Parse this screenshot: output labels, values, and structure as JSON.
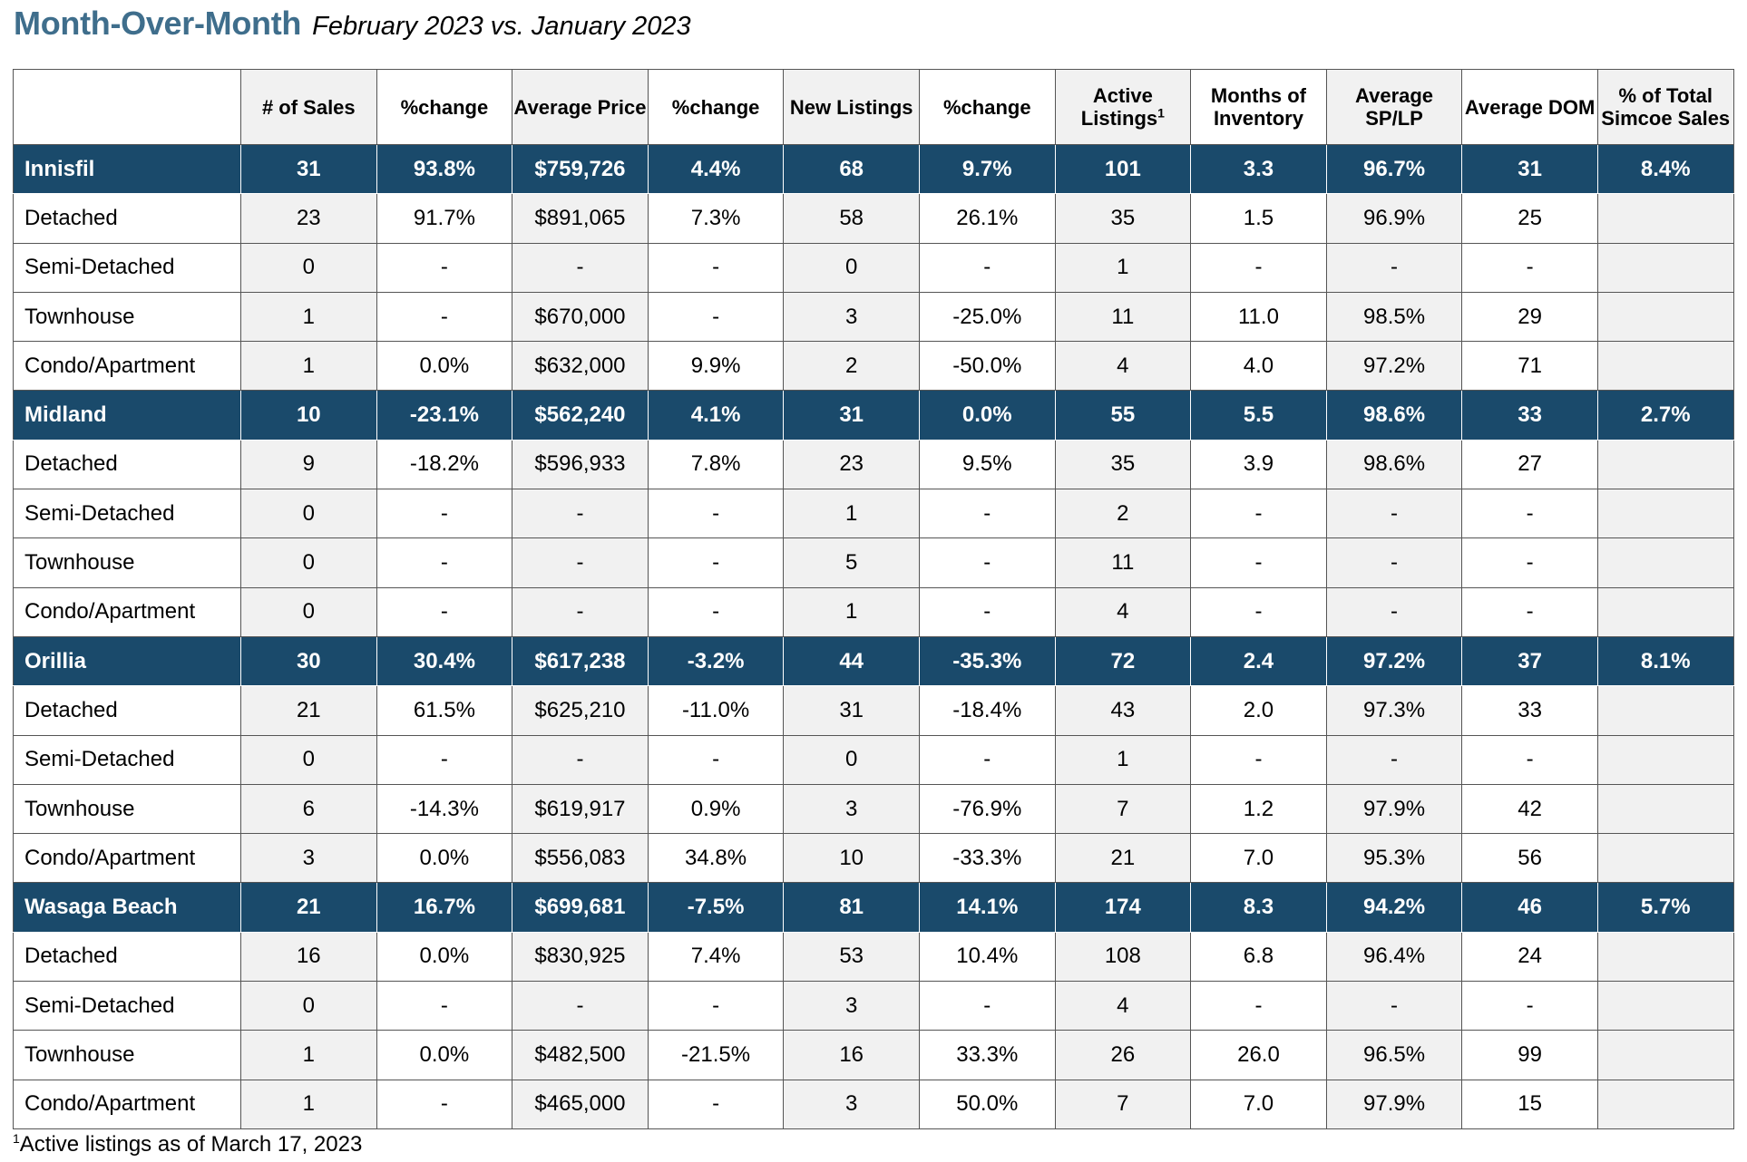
{
  "title": {
    "main": "Month-Over-Month",
    "sub": "February 2023 vs. January 2023"
  },
  "columns": [
    {
      "text": ""
    },
    {
      "text": "# of Sales",
      "shade": true
    },
    {
      "text": "%change"
    },
    {
      "text": "Average Price",
      "shade": true
    },
    {
      "text": "%change"
    },
    {
      "text": "New Listings",
      "shade": true
    },
    {
      "text": "%change"
    },
    {
      "text": "Active Listings",
      "sup": "1",
      "shade": true
    },
    {
      "text": "Months of Inventory"
    },
    {
      "text": "Average SP/LP",
      "shade": true
    },
    {
      "text": "Average DOM"
    },
    {
      "text": "% of Total Simcoe Sales",
      "shade": true
    }
  ],
  "rows": [
    {
      "type": "region",
      "cells": [
        "Innisfil",
        "31",
        "93.8%",
        "$759,726",
        "4.4%",
        "68",
        "9.7%",
        "101",
        "3.3",
        "96.7%",
        "31",
        "8.4%"
      ]
    },
    {
      "type": "sub",
      "cells": [
        "Detached",
        "23",
        "91.7%",
        "$891,065",
        "7.3%",
        "58",
        "26.1%",
        "35",
        "1.5",
        "96.9%",
        "25",
        ""
      ]
    },
    {
      "type": "sub",
      "cells": [
        "Semi-Detached",
        "0",
        "-",
        "-",
        "-",
        "0",
        "-",
        "1",
        "-",
        "-",
        "-",
        ""
      ]
    },
    {
      "type": "sub",
      "cells": [
        "Townhouse",
        "1",
        "-",
        "$670,000",
        "-",
        "3",
        "-25.0%",
        "11",
        "11.0",
        "98.5%",
        "29",
        ""
      ]
    },
    {
      "type": "sub",
      "cells": [
        "Condo/Apartment",
        "1",
        "0.0%",
        "$632,000",
        "9.9%",
        "2",
        "-50.0%",
        "4",
        "4.0",
        "97.2%",
        "71",
        ""
      ]
    },
    {
      "type": "region",
      "cells": [
        "Midland",
        "10",
        "-23.1%",
        "$562,240",
        "4.1%",
        "31",
        "0.0%",
        "55",
        "5.5",
        "98.6%",
        "33",
        "2.7%"
      ]
    },
    {
      "type": "sub",
      "cells": [
        "Detached",
        "9",
        "-18.2%",
        "$596,933",
        "7.8%",
        "23",
        "9.5%",
        "35",
        "3.9",
        "98.6%",
        "27",
        ""
      ]
    },
    {
      "type": "sub",
      "cells": [
        "Semi-Detached",
        "0",
        "-",
        "-",
        "-",
        "1",
        "-",
        "2",
        "-",
        "-",
        "-",
        ""
      ]
    },
    {
      "type": "sub",
      "cells": [
        "Townhouse",
        "0",
        "-",
        "-",
        "-",
        "5",
        "-",
        "11",
        "-",
        "-",
        "-",
        ""
      ]
    },
    {
      "type": "sub",
      "cells": [
        "Condo/Apartment",
        "0",
        "-",
        "-",
        "-",
        "1",
        "-",
        "4",
        "-",
        "-",
        "-",
        ""
      ]
    },
    {
      "type": "region",
      "cells": [
        "Orillia",
        "30",
        "30.4%",
        "$617,238",
        "-3.2%",
        "44",
        "-35.3%",
        "72",
        "2.4",
        "97.2%",
        "37",
        "8.1%"
      ]
    },
    {
      "type": "sub",
      "cells": [
        "Detached",
        "21",
        "61.5%",
        "$625,210",
        "-11.0%",
        "31",
        "-18.4%",
        "43",
        "2.0",
        "97.3%",
        "33",
        ""
      ]
    },
    {
      "type": "sub",
      "cells": [
        "Semi-Detached",
        "0",
        "-",
        "-",
        "-",
        "0",
        "-",
        "1",
        "-",
        "-",
        "-",
        ""
      ]
    },
    {
      "type": "sub",
      "cells": [
        "Townhouse",
        "6",
        "-14.3%",
        "$619,917",
        "0.9%",
        "3",
        "-76.9%",
        "7",
        "1.2",
        "97.9%",
        "42",
        ""
      ]
    },
    {
      "type": "sub",
      "cells": [
        "Condo/Apartment",
        "3",
        "0.0%",
        "$556,083",
        "34.8%",
        "10",
        "-33.3%",
        "21",
        "7.0",
        "95.3%",
        "56",
        ""
      ]
    },
    {
      "type": "region",
      "cells": [
        "Wasaga Beach",
        "21",
        "16.7%",
        "$699,681",
        "-7.5%",
        "81",
        "14.1%",
        "174",
        "8.3",
        "94.2%",
        "46",
        "5.7%"
      ]
    },
    {
      "type": "sub",
      "cells": [
        "Detached",
        "16",
        "0.0%",
        "$830,925",
        "7.4%",
        "53",
        "10.4%",
        "108",
        "6.8",
        "96.4%",
        "24",
        ""
      ]
    },
    {
      "type": "sub",
      "cells": [
        "Semi-Detached",
        "0",
        "-",
        "-",
        "-",
        "3",
        "-",
        "4",
        "-",
        "-",
        "-",
        ""
      ]
    },
    {
      "type": "sub",
      "cells": [
        "Townhouse",
        "1",
        "0.0%",
        "$482,500",
        "-21.5%",
        "16",
        "33.3%",
        "26",
        "26.0",
        "96.5%",
        "99",
        ""
      ]
    },
    {
      "type": "sub",
      "cells": [
        "Condo/Apartment",
        "1",
        "-",
        "$465,000",
        "-",
        "3",
        "50.0%",
        "7",
        "7.0",
        "97.9%",
        "15",
        ""
      ]
    }
  ],
  "footnote": {
    "sup": "1",
    "text": "Active listings as of March 17, 2023"
  },
  "colors": {
    "region_bg": "#1a4a6b",
    "title": "#3f6e8c",
    "shade": "#f1f1f1"
  }
}
